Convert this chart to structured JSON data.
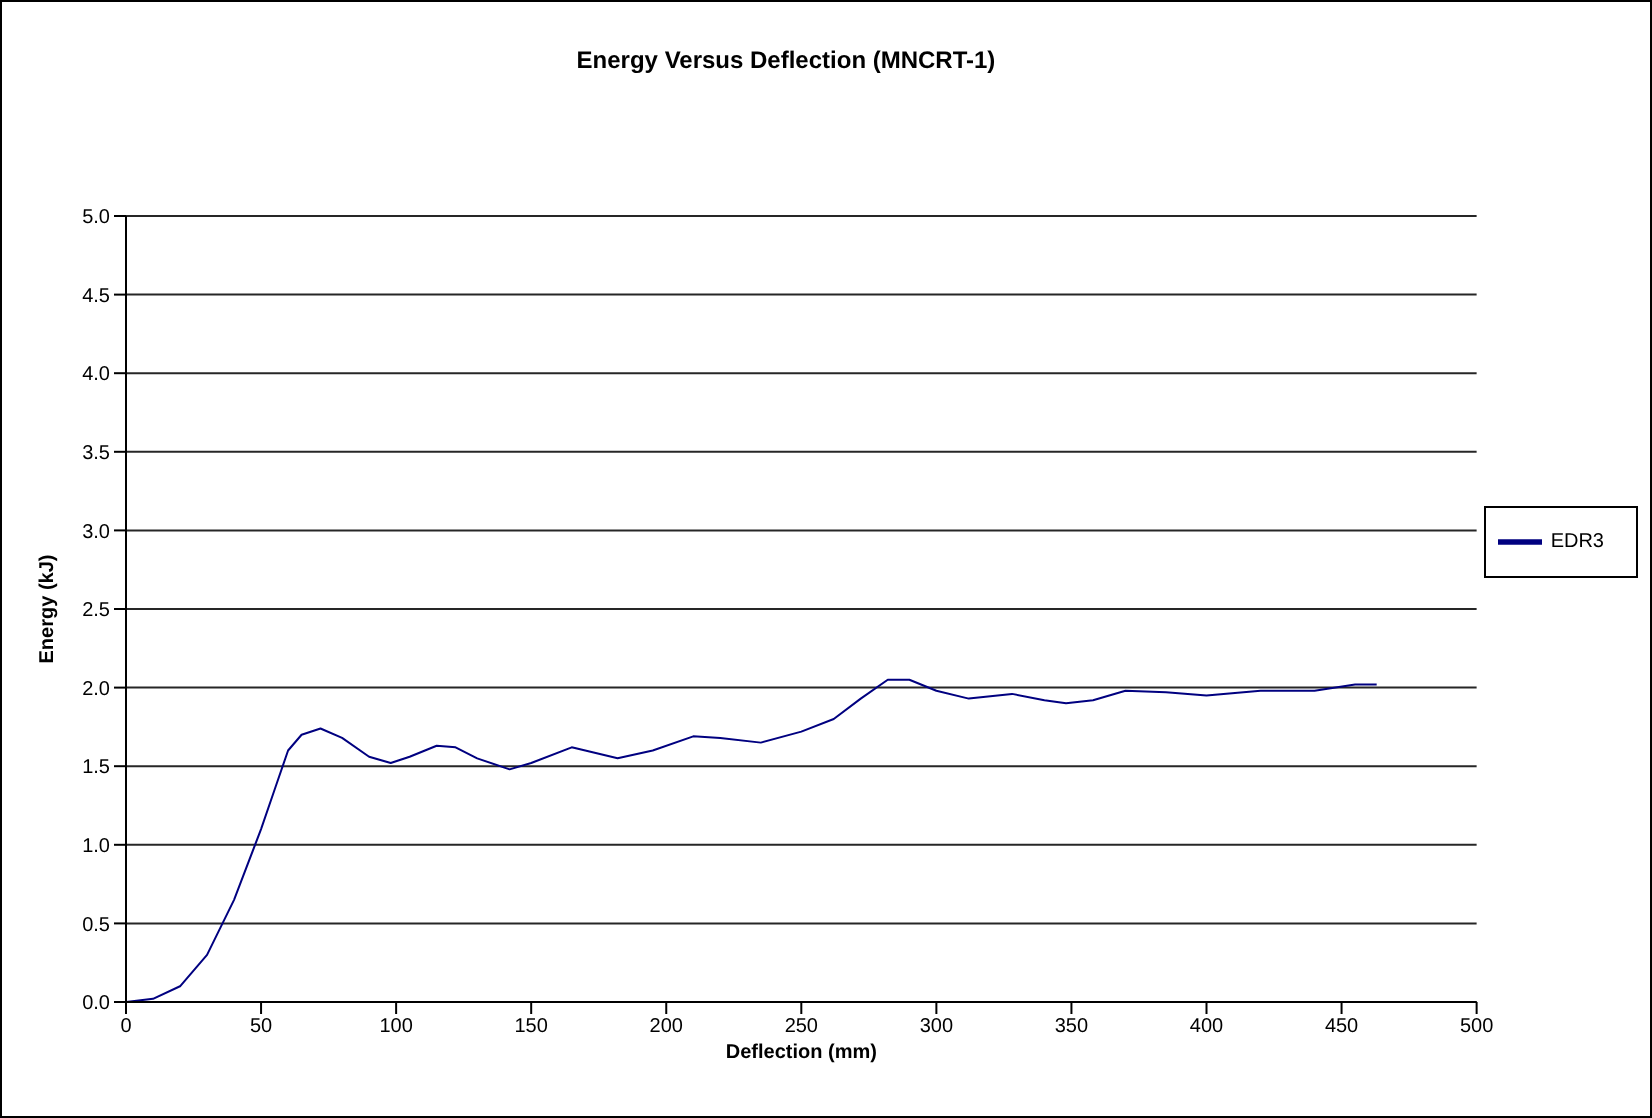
{
  "chart_data": {
    "type": "line",
    "title": "Energy Versus Deflection (MNCRT-1)",
    "xlabel": "Deflection (mm)",
    "ylabel": "Energy (kJ)",
    "xlim": [
      0,
      500
    ],
    "xticks": [
      0,
      50,
      100,
      150,
      200,
      250,
      300,
      350,
      400,
      450,
      500
    ],
    "ylim": [
      0,
      5
    ],
    "yticks": [
      {
        "value": 0,
        "label": "0.0"
      },
      {
        "value": 0.5,
        "label": "0.5"
      },
      {
        "value": 1,
        "label": "1.0"
      },
      {
        "value": 1.5,
        "label": "1.5"
      },
      {
        "value": 2,
        "label": "2.0"
      },
      {
        "value": 2.5,
        "label": "2.5"
      },
      {
        "value": 3,
        "label": "3.0"
      },
      {
        "value": 3.5,
        "label": "3.5"
      },
      {
        "value": 4,
        "label": "4.0"
      },
      {
        "value": 4.5,
        "label": "4.5"
      },
      {
        "value": 5,
        "label": "5.0"
      }
    ],
    "grid": "y",
    "legend": "right",
    "marker": "none",
    "line_style": "solid",
    "series": [
      {
        "name": "EDR3",
        "color": "#000080",
        "x": [
          0,
          10,
          20,
          30,
          40,
          50,
          55,
          60,
          65,
          72,
          80,
          90,
          98,
          105,
          115,
          122,
          130,
          142,
          150,
          165,
          182,
          195,
          210,
          220,
          235,
          250,
          262,
          272,
          282,
          290,
          300,
          312,
          328,
          340,
          348,
          358,
          370,
          385,
          400,
          420,
          440,
          455,
          463
        ],
        "values": [
          0,
          0.02,
          0.1,
          0.3,
          0.65,
          1.1,
          1.35,
          1.6,
          1.7,
          1.74,
          1.68,
          1.56,
          1.52,
          1.56,
          1.63,
          1.62,
          1.55,
          1.48,
          1.52,
          1.62,
          1.55,
          1.6,
          1.69,
          1.68,
          1.65,
          1.72,
          1.8,
          1.93,
          2.05,
          2.05,
          1.98,
          1.93,
          1.96,
          1.92,
          1.9,
          1.92,
          1.98,
          1.97,
          1.95,
          1.98,
          1.98,
          2.02,
          2.02
        ]
      }
    ]
  }
}
